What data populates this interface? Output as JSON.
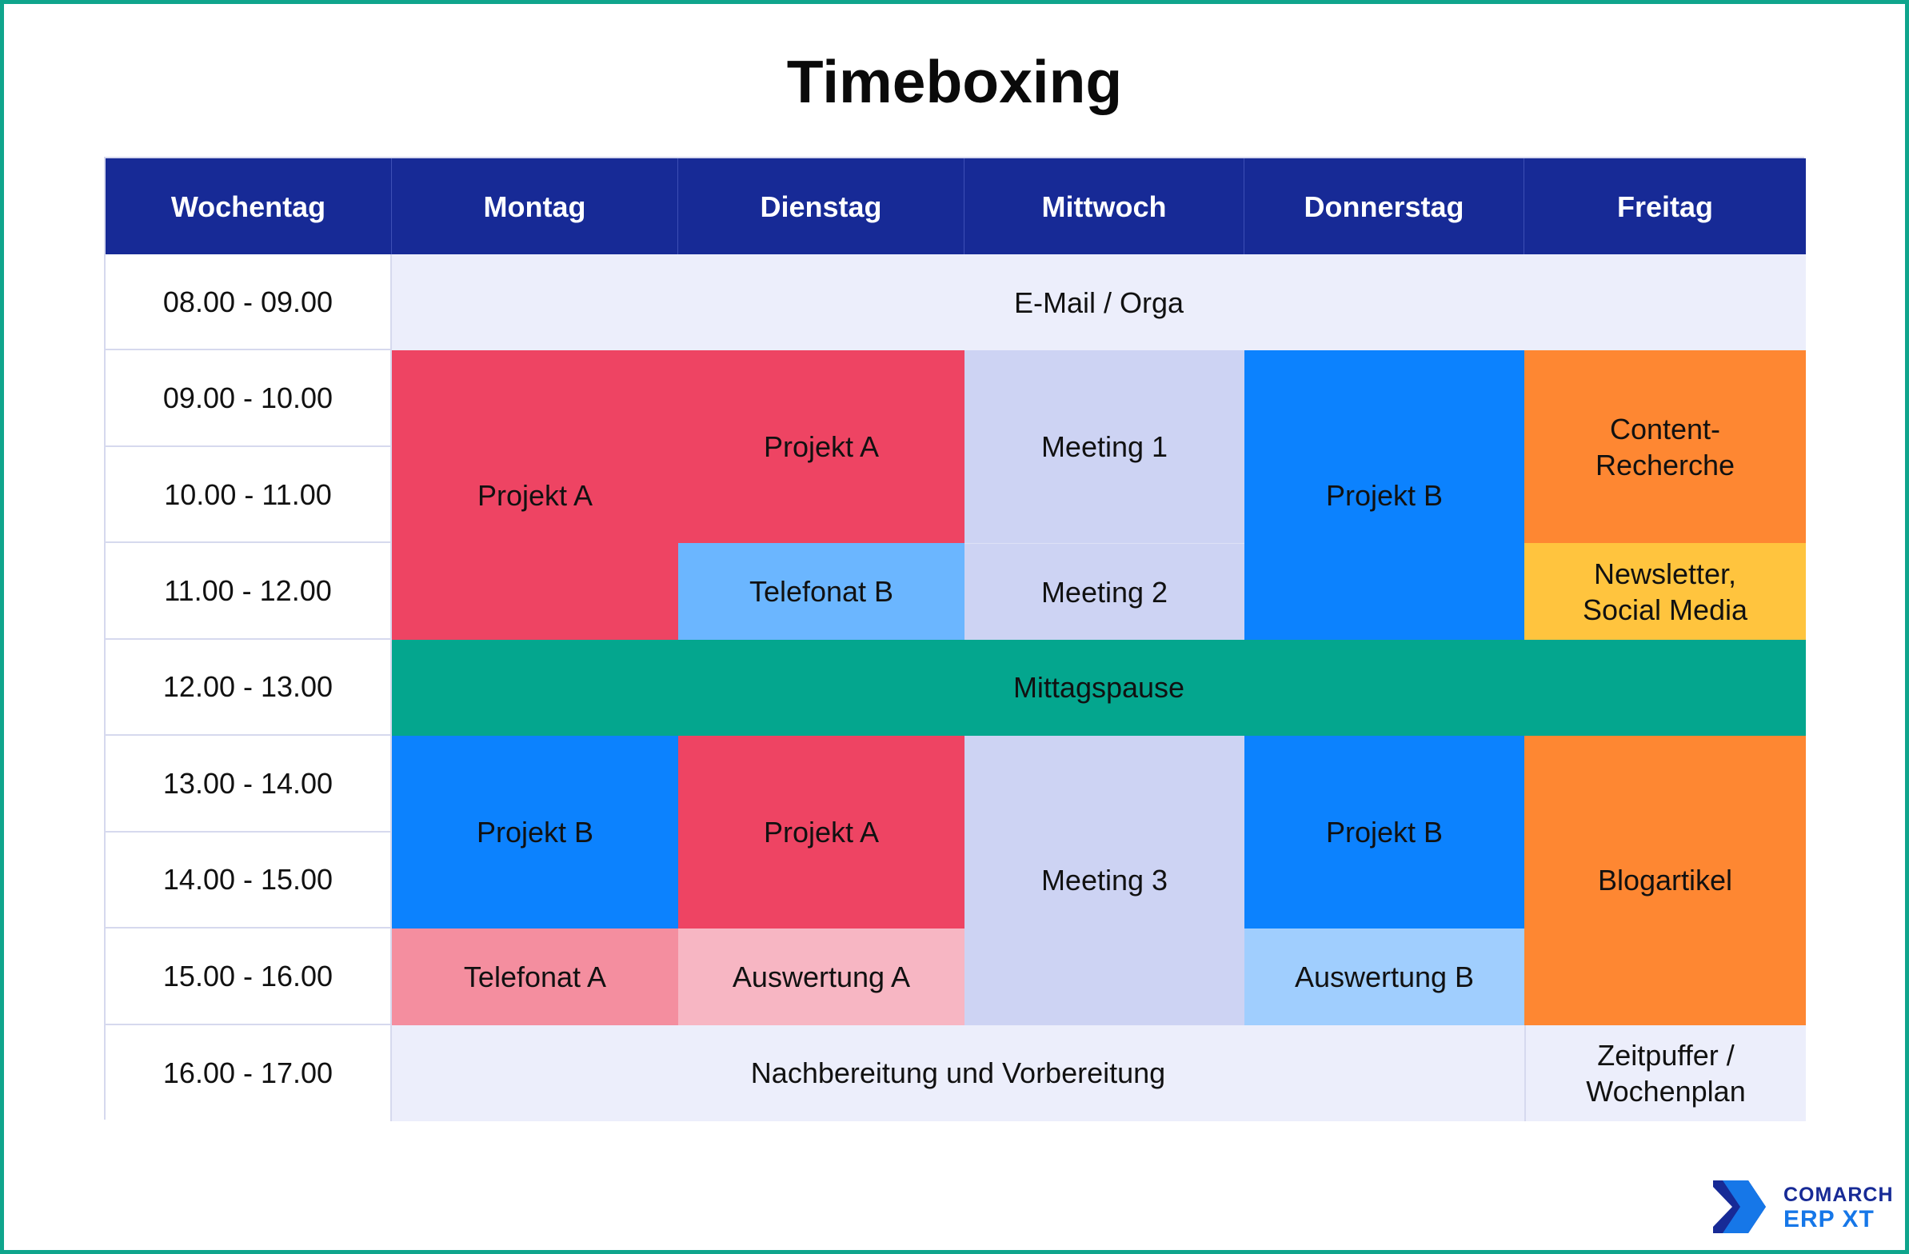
{
  "title": "Timeboxing",
  "colors": {
    "frame": "#0fa58c",
    "header": "#172a96",
    "light": "#eceefb",
    "meeting": "#cdd3f3",
    "red": "#ee4463",
    "blue": "#0c82fe",
    "lightblue": "#6bb6ff",
    "paleblue": "#a0cefe",
    "pink": "#f48e9f",
    "palepink": "#f7b6c3",
    "green": "#04a68e",
    "orange": "#fe8732",
    "yellow": "#ffc43e"
  },
  "header": [
    "Wochentag",
    "Montag",
    "Dienstag",
    "Mittwoch",
    "Donnerstag",
    "Freitag"
  ],
  "times": [
    "08.00 - 09.00",
    "09.00 - 10.00",
    "10.00 - 11.00",
    "11.00 - 12.00",
    "12.00 - 13.00",
    "13.00 - 14.00",
    "14.00 - 15.00",
    "15.00 - 16.00",
    "16.00 - 17.00"
  ],
  "blocks": [
    {
      "name": "email-orga",
      "label": "E-Mail / Orga",
      "color": "light"
    },
    {
      "name": "mo-projekt-a",
      "label": "Projekt A",
      "color": "red"
    },
    {
      "name": "di-projekt-a",
      "label": "Projekt A",
      "color": "red"
    },
    {
      "name": "mi-meeting-1",
      "label": "Meeting 1",
      "color": "meeting"
    },
    {
      "name": "do-projekt-b",
      "label": "Projekt B",
      "color": "blue"
    },
    {
      "name": "fr-content-recherche",
      "label": "Content-\nRecherche",
      "color": "orange"
    },
    {
      "name": "di-telefonat-b",
      "label": "Telefonat B",
      "color": "lightblue"
    },
    {
      "name": "mi-meeting-2",
      "label": "Meeting 2",
      "color": "meeting"
    },
    {
      "name": "fr-newsletter",
      "label": "Newsletter,\nSocial Media",
      "color": "yellow"
    },
    {
      "name": "mittagspause",
      "label": "Mittagspause",
      "color": "green"
    },
    {
      "name": "mo-projekt-b",
      "label": "Projekt B",
      "color": "blue"
    },
    {
      "name": "di-projekt-a-pm",
      "label": "Projekt A",
      "color": "red"
    },
    {
      "name": "mi-meeting-3",
      "label": "Meeting 3",
      "color": "meeting"
    },
    {
      "name": "do-projekt-b-pm",
      "label": "Projekt B",
      "color": "blue"
    },
    {
      "name": "fr-blogartikel",
      "label": "Blogartikel",
      "color": "orange"
    },
    {
      "name": "mo-telefonat-a",
      "label": "Telefonat A",
      "color": "pink"
    },
    {
      "name": "di-auswertung-a",
      "label": "Auswertung A",
      "color": "palepink"
    },
    {
      "name": "do-auswertung-b",
      "label": "Auswertung B",
      "color": "paleblue"
    },
    {
      "name": "nachbereitung",
      "label": "Nachbereitung und Vorbereitung",
      "color": "light"
    },
    {
      "name": "fr-zeitpuffer",
      "label": "Zeitpuffer /\nWochenplan",
      "color": "light"
    }
  ],
  "logo": {
    "line1": "COMARCH",
    "line2": "ERP XT"
  }
}
